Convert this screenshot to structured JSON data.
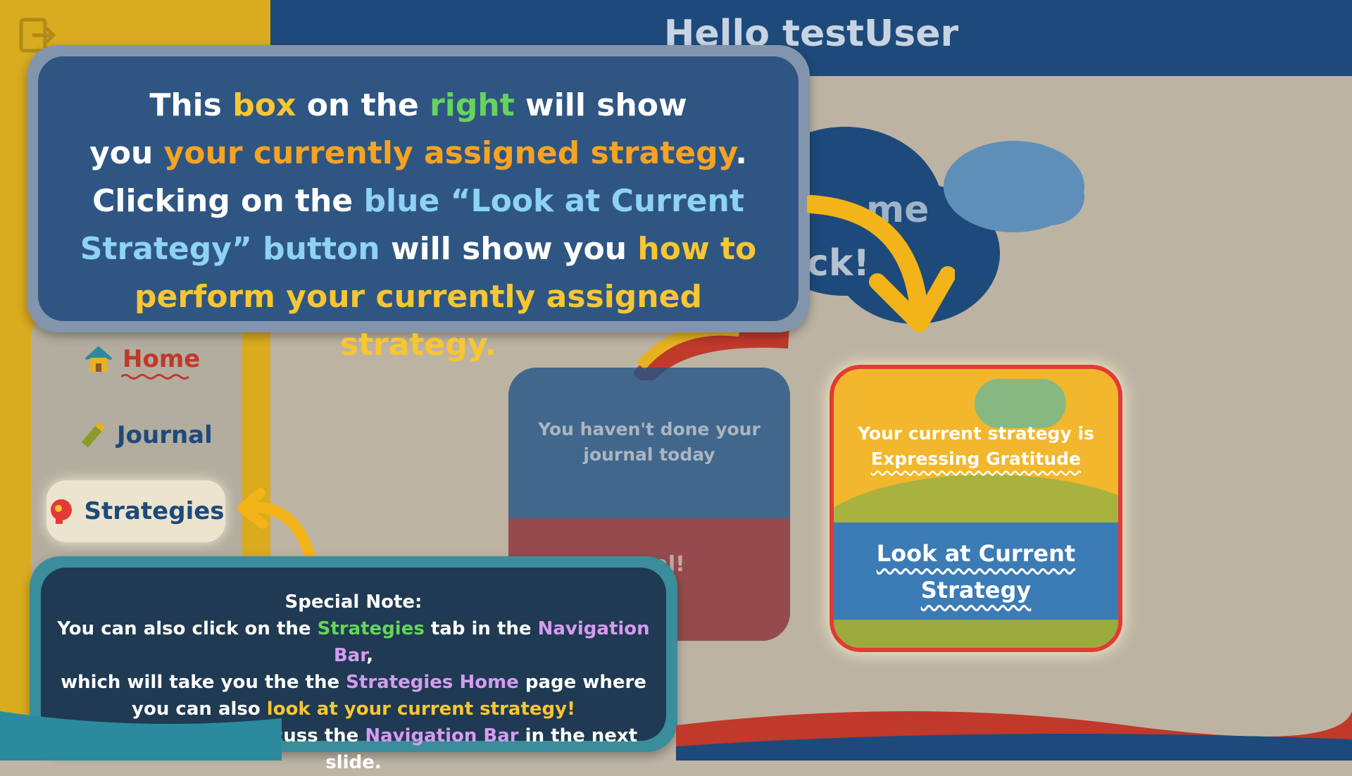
{
  "header": {
    "greeting": "Hello testUser",
    "welcome_partial_1": "me",
    "welcome_partial_2": "ck!"
  },
  "nav": {
    "items": [
      {
        "label": "Home",
        "icon": "house-icon"
      },
      {
        "label": "Journal",
        "icon": "pencil-icon"
      },
      {
        "label": "Strategies",
        "icon": "head-icon"
      }
    ]
  },
  "journal_card": {
    "message": "You haven't done your journal today",
    "button_partial": "urnal!"
  },
  "strategy_card": {
    "prefix": "Your current strategy is",
    "strategy": "Expressing Gratitude",
    "button_line1": "Look at Current",
    "button_line2": "Strategy"
  },
  "tutorial": {
    "l1_a": "This ",
    "l1_b": "box",
    "l1_c": " on the ",
    "l1_d": "right",
    "l1_e": " will show",
    "l2_a": "you ",
    "l2_b": "your currently assigned strategy",
    "l2_c": ".",
    "l3_a": "Clicking on the ",
    "l3_b": "blue “Look at Current",
    "l4_a": "Strategy” button",
    "l4_b": " will show you ",
    "l4_c": "how to",
    "l5_a": "perform your currently assigned strategy."
  },
  "note": {
    "title": "Special Note:",
    "n1_a": "You can also click on the ",
    "n1_b": "Strategies",
    "n1_c": " tab in the ",
    "n1_d": "Navigation Bar",
    "n1_e": ",",
    "n2_a": "which will take you the the ",
    "n2_b": "Strategies Home",
    "n2_c": " page where",
    "n3_a": "you can also ",
    "n3_b": "look at your current strategy!",
    "n4_a": "We will begin to discuss the ",
    "n4_b": "Navigation Bar",
    "n4_c": " in the next slide."
  },
  "colors": {
    "accent_yellow": "#f7c631",
    "accent_green": "#66d45c",
    "accent_orange": "#f6a323",
    "accent_blue": "#8ed2f5",
    "accent_purple": "#d59cf0",
    "highlight_red": "#e23a36",
    "navy": "#1d4a7a"
  }
}
